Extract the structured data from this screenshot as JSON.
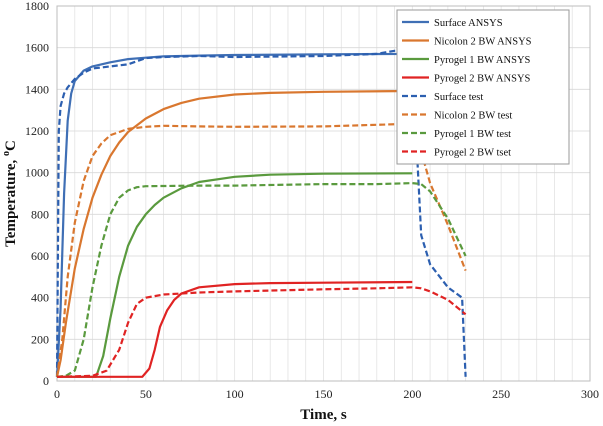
{
  "chart_data": {
    "type": "line",
    "title": "",
    "xlabel": "Time, s",
    "ylabel": "Temperature, ",
    "ylabel_unit_sup": "o",
    "ylabel_unit": "C",
    "xlim": [
      0,
      300
    ],
    "ylim": [
      0,
      1800
    ],
    "xticks": [
      0,
      50,
      100,
      150,
      200,
      250,
      300
    ],
    "yticks": [
      0,
      200,
      400,
      600,
      800,
      1000,
      1200,
      1400,
      1600,
      1800
    ],
    "grid": true,
    "legend_position": "top-right",
    "series": [
      {
        "name": "Surface  ANSYS",
        "color": "#3f6fb5",
        "dash": "solid",
        "points": [
          [
            0,
            20
          ],
          [
            2,
            350
          ],
          [
            4,
            900
          ],
          [
            6,
            1250
          ],
          [
            8,
            1380
          ],
          [
            10,
            1440
          ],
          [
            15,
            1490
          ],
          [
            20,
            1510
          ],
          [
            30,
            1530
          ],
          [
            40,
            1545
          ],
          [
            50,
            1552
          ],
          [
            60,
            1558
          ],
          [
            80,
            1562
          ],
          [
            100,
            1565
          ],
          [
            150,
            1568
          ],
          [
            200,
            1570
          ]
        ]
      },
      {
        "name": "Nicolon 2 BW ANSYS",
        "color": "#d9772f",
        "dash": "solid",
        "points": [
          [
            0,
            20
          ],
          [
            2,
            100
          ],
          [
            5,
            280
          ],
          [
            10,
            540
          ],
          [
            15,
            730
          ],
          [
            20,
            880
          ],
          [
            25,
            990
          ],
          [
            30,
            1080
          ],
          [
            35,
            1145
          ],
          [
            40,
            1195
          ],
          [
            50,
            1260
          ],
          [
            60,
            1305
          ],
          [
            70,
            1335
          ],
          [
            80,
            1355
          ],
          [
            100,
            1375
          ],
          [
            120,
            1383
          ],
          [
            150,
            1388
          ],
          [
            200,
            1392
          ]
        ]
      },
      {
        "name": "Pyrogel 1 BW ANSYS",
        "color": "#5a9a3e",
        "dash": "solid",
        "points": [
          [
            0,
            20
          ],
          [
            22,
            20
          ],
          [
            26,
            120
          ],
          [
            30,
            300
          ],
          [
            35,
            500
          ],
          [
            40,
            650
          ],
          [
            45,
            740
          ],
          [
            50,
            800
          ],
          [
            55,
            845
          ],
          [
            60,
            880
          ],
          [
            70,
            925
          ],
          [
            80,
            955
          ],
          [
            100,
            980
          ],
          [
            120,
            990
          ],
          [
            150,
            995
          ],
          [
            200,
            997
          ]
        ]
      },
      {
        "name": "Pyrogel 2 BW ANSYS",
        "color": "#e02323",
        "dash": "solid",
        "points": [
          [
            0,
            20
          ],
          [
            48,
            20
          ],
          [
            52,
            60
          ],
          [
            55,
            150
          ],
          [
            58,
            260
          ],
          [
            62,
            340
          ],
          [
            66,
            390
          ],
          [
            70,
            420
          ],
          [
            80,
            450
          ],
          [
            100,
            465
          ],
          [
            120,
            470
          ],
          [
            150,
            472
          ],
          [
            200,
            475
          ]
        ]
      },
      {
        "name": "Surface test",
        "color": "#2c5fb0",
        "dash": "dashed",
        "points": [
          [
            0,
            20
          ],
          [
            1,
            1200
          ],
          [
            2,
            1320
          ],
          [
            4,
            1380
          ],
          [
            6,
            1410
          ],
          [
            10,
            1450
          ],
          [
            15,
            1480
          ],
          [
            20,
            1500
          ],
          [
            30,
            1510
          ],
          [
            40,
            1520
          ],
          [
            50,
            1550
          ],
          [
            60,
            1555
          ],
          [
            80,
            1560
          ],
          [
            100,
            1555
          ],
          [
            150,
            1560
          ],
          [
            180,
            1570
          ],
          [
            190,
            1585
          ],
          [
            200,
            1590
          ],
          [
            202,
            1200
          ],
          [
            205,
            700
          ],
          [
            210,
            560
          ],
          [
            220,
            450
          ],
          [
            228,
            400
          ],
          [
            230,
            20
          ]
        ]
      },
      {
        "name": "Nicolon 2 BW test",
        "color": "#d9772f",
        "dash": "dashed",
        "points": [
          [
            0,
            20
          ],
          [
            3,
            200
          ],
          [
            6,
            500
          ],
          [
            10,
            760
          ],
          [
            15,
            960
          ],
          [
            20,
            1080
          ],
          [
            25,
            1140
          ],
          [
            30,
            1180
          ],
          [
            40,
            1210
          ],
          [
            50,
            1220
          ],
          [
            60,
            1225
          ],
          [
            80,
            1222
          ],
          [
            100,
            1220
          ],
          [
            150,
            1222
          ],
          [
            180,
            1230
          ],
          [
            200,
            1235
          ],
          [
            202,
            1220
          ],
          [
            205,
            1100
          ],
          [
            210,
            950
          ],
          [
            220,
            750
          ],
          [
            230,
            530
          ]
        ]
      },
      {
        "name": "Pyrogel 1 BW test",
        "color": "#5a9a3e",
        "dash": "dashed",
        "points": [
          [
            0,
            20
          ],
          [
            5,
            25
          ],
          [
            10,
            50
          ],
          [
            15,
            200
          ],
          [
            20,
            450
          ],
          [
            25,
            650
          ],
          [
            30,
            800
          ],
          [
            35,
            880
          ],
          [
            40,
            915
          ],
          [
            45,
            930
          ],
          [
            50,
            935
          ],
          [
            80,
            938
          ],
          [
            100,
            938
          ],
          [
            150,
            945
          ],
          [
            180,
            945
          ],
          [
            200,
            950
          ],
          [
            205,
            945
          ],
          [
            210,
            910
          ],
          [
            220,
            780
          ],
          [
            230,
            600
          ]
        ]
      },
      {
        "name": "Pyrogel 2 BW tset",
        "color": "#e02323",
        "dash": "dashed",
        "points": [
          [
            0,
            20
          ],
          [
            20,
            25
          ],
          [
            28,
            50
          ],
          [
            35,
            150
          ],
          [
            40,
            280
          ],
          [
            45,
            370
          ],
          [
            50,
            400
          ],
          [
            60,
            415
          ],
          [
            80,
            425
          ],
          [
            100,
            430
          ],
          [
            150,
            440
          ],
          [
            180,
            445
          ],
          [
            200,
            450
          ],
          [
            205,
            445
          ],
          [
            210,
            430
          ],
          [
            220,
            390
          ],
          [
            230,
            320
          ]
        ]
      }
    ]
  }
}
